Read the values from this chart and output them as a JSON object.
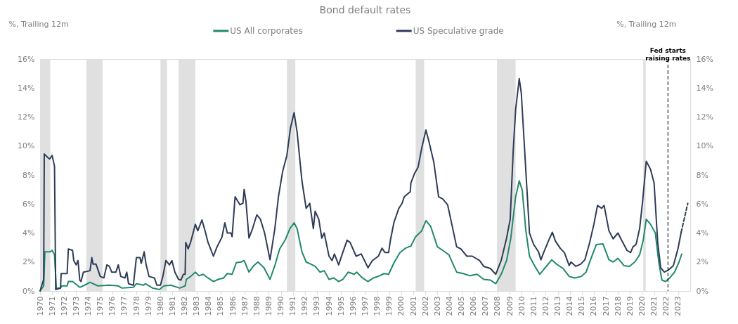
{
  "chart_data": {
    "type": "line",
    "title": "Bond default rates",
    "ylabel": "%, Trailing 12m",
    "y2label": "%, Trailing 12m",
    "xlim": [
      1970,
      2024
    ],
    "xticks": [
      1970,
      1971,
      1972,
      1973,
      1974,
      1975,
      1976,
      1977,
      1978,
      1979,
      1980,
      1981,
      1982,
      1983,
      1984,
      1985,
      1986,
      1987,
      1988,
      1989,
      1990,
      1991,
      1992,
      1993,
      1994,
      1995,
      1996,
      1997,
      1998,
      1999,
      2000,
      2001,
      2002,
      2003,
      2004,
      2005,
      2006,
      2007,
      2008,
      2009,
      2010,
      2011,
      2012,
      2013,
      2014,
      2015,
      2016,
      2017,
      2018,
      2019,
      2020,
      2021,
      2022,
      2023
    ],
    "ylim": [
      0,
      16
    ],
    "yticks": [
      {
        "value": 0,
        "label": "0%"
      },
      {
        "value": 2,
        "label": "2%"
      },
      {
        "value": 4,
        "label": "4%"
      },
      {
        "value": 6,
        "label": "6%"
      },
      {
        "value": 8,
        "label": "8%"
      },
      {
        "value": 10,
        "label": "10%"
      },
      {
        "value": 12,
        "label": "12%"
      },
      {
        "value": 14,
        "label": "14%"
      },
      {
        "value": 16,
        "label": "16%"
      }
    ],
    "y2lim": [
      0,
      16
    ],
    "y2ticks": [
      {
        "value": 0,
        "label": "0%"
      },
      {
        "value": 2,
        "label": "2%"
      },
      {
        "value": 4,
        "label": "4%"
      },
      {
        "value": 6,
        "label": "6%"
      },
      {
        "value": 8,
        "label": "8%"
      },
      {
        "value": 10,
        "label": "10%"
      },
      {
        "value": 12,
        "label": "12%"
      },
      {
        "value": 14,
        "label": "14%"
      },
      {
        "value": 16,
        "label": "16%"
      }
    ],
    "grid": false,
    "legend": "top",
    "line_style": "solid",
    "series": [
      {
        "name": "US All corporates",
        "color": "#21896b",
        "x": [
          1970.0,
          1970.3,
          1970.4,
          1970.85,
          1971.0,
          1971.2,
          1971.35,
          1971.7,
          1971.8,
          1972.25,
          1972.35,
          1972.7,
          1973.3,
          1973.7,
          1974.15,
          1974.8,
          1975.75,
          1976.5,
          1976.8,
          1977.75,
          1978.0,
          1978.6,
          1978.75,
          1979.35,
          1979.9,
          1980.3,
          1980.85,
          1981.6,
          1982.05,
          1982.15,
          1982.5,
          1982.9,
          1983.2,
          1983.55,
          1983.95,
          1984.4,
          1984.8,
          1985.25,
          1985.55,
          1985.95,
          1986.3,
          1986.7,
          1986.95,
          1987.35,
          1987.75,
          1988.1,
          1988.6,
          1989.1,
          1989.5,
          1989.9,
          1990.35,
          1990.75,
          1991.1,
          1991.35,
          1991.75,
          1992.1,
          1992.5,
          1992.85,
          1993.25,
          1993.6,
          1994.0,
          1994.4,
          1994.8,
          1995.15,
          1995.6,
          1996.1,
          1996.3,
          1996.77,
          1997.24,
          1997.7,
          1998.2,
          1998.56,
          1998.95,
          1999.4,
          1999.9,
          2000.35,
          2000.8,
          2001.2,
          2001.7,
          2002.05,
          2002.45,
          2003.0,
          2003.45,
          2003.95,
          2004.6,
          2005.15,
          2005.7,
          2006.3,
          2006.85,
          2007.4,
          2007.85,
          2008.3,
          2008.75,
          2009.1,
          2009.5,
          2009.8,
          2010.05,
          2010.35,
          2010.65,
          2011.1,
          2011.5,
          2011.95,
          2012.5,
          2012.9,
          2013.45,
          2013.95,
          2014.4,
          2014.95,
          2015.35,
          2015.7,
          2016.2,
          2016.75,
          2017.25,
          2017.6,
          2018.0,
          2018.5,
          2018.95,
          2019.4,
          2019.8,
          2020.1,
          2020.35,
          2020.7,
          2021.1,
          2021.4,
          2021.65,
          2021.95,
          2022.3,
          2022.7,
          2023.05,
          2023.3
        ],
        "values": [
          0.0,
          0.35,
          2.7,
          2.7,
          2.8,
          2.5,
          0.2,
          0.2,
          0.35,
          0.35,
          0.65,
          0.65,
          0.25,
          0.4,
          0.6,
          0.35,
          0.4,
          0.35,
          0.2,
          0.25,
          0.5,
          0.4,
          0.5,
          0.2,
          0.1,
          0.35,
          0.4,
          0.2,
          0.35,
          0.8,
          1.0,
          1.3,
          1.05,
          1.15,
          0.9,
          0.65,
          0.8,
          0.9,
          1.2,
          1.15,
          1.95,
          2.0,
          2.1,
          1.3,
          1.75,
          2.0,
          1.6,
          0.8,
          1.75,
          2.9,
          3.5,
          4.3,
          4.7,
          4.3,
          2.7,
          2.0,
          1.85,
          1.7,
          1.3,
          1.4,
          0.8,
          0.9,
          0.65,
          0.8,
          1.3,
          1.15,
          1.3,
          0.9,
          0.65,
          0.9,
          1.05,
          1.2,
          1.15,
          1.95,
          2.65,
          2.95,
          3.1,
          3.75,
          4.15,
          4.85,
          4.45,
          3.05,
          2.8,
          2.5,
          1.3,
          1.2,
          1.05,
          1.15,
          0.8,
          0.75,
          0.5,
          1.15,
          2.1,
          3.65,
          6.5,
          7.6,
          6.95,
          4.15,
          2.4,
          1.7,
          1.15,
          1.6,
          2.15,
          1.85,
          1.55,
          1.0,
          0.9,
          1.0,
          1.3,
          2.1,
          3.2,
          3.25,
          2.15,
          2.0,
          2.25,
          1.75,
          1.7,
          2.0,
          2.5,
          3.5,
          4.95,
          4.6,
          4.0,
          1.95,
          0.75,
          0.65,
          0.9,
          1.3,
          1.95,
          2.55
        ]
      },
      {
        "name": "US Speculative grade",
        "color": "#2e3c58",
        "x": [
          1970.0,
          1970.3,
          1970.35,
          1970.65,
          1970.8,
          1971.0,
          1971.2,
          1971.3,
          1971.7,
          1971.75,
          1972.25,
          1972.35,
          1972.7,
          1972.8,
          1973.0,
          1973.15,
          1973.3,
          1973.4,
          1973.6,
          1974.15,
          1974.3,
          1974.4,
          1974.65,
          1975.0,
          1975.3,
          1975.55,
          1975.75,
          1975.95,
          1976.3,
          1976.5,
          1976.7,
          1977.05,
          1977.2,
          1977.35,
          1977.75,
          1978.0,
          1978.3,
          1978.4,
          1978.65,
          1978.8,
          1979.05,
          1979.5,
          1979.7,
          1980.0,
          1980.2,
          1980.45,
          1980.75,
          1980.95,
          1981.2,
          1981.5,
          1981.7,
          1981.9,
          1982.05,
          1982.1,
          1982.3,
          1982.5,
          1982.9,
          1983.1,
          1983.45,
          1983.75,
          1983.95,
          1984.4,
          1984.7,
          1985.1,
          1985.35,
          1985.55,
          1985.85,
          1985.95,
          1986.2,
          1986.6,
          1986.85,
          1986.95,
          1987.1,
          1987.35,
          1987.65,
          1988.0,
          1988.3,
          1988.65,
          1989.1,
          1989.5,
          1989.8,
          1990.15,
          1990.5,
          1990.8,
          1991.1,
          1991.35,
          1991.75,
          1992.1,
          1992.4,
          1992.7,
          1992.85,
          1993.15,
          1993.4,
          1993.6,
          1994.0,
          1994.25,
          1994.45,
          1994.8,
          1995.1,
          1995.5,
          1995.75,
          1996.25,
          1996.68,
          1997.24,
          1997.6,
          1998.1,
          1998.4,
          1998.65,
          1998.95,
          1999.1,
          1999.4,
          1999.8,
          2000.07,
          2000.25,
          2000.75,
          2000.8,
          2001.1,
          2001.4,
          2001.7,
          2002.05,
          2002.3,
          2002.7,
          2003.1,
          2003.45,
          2003.85,
          2004.2,
          2004.6,
          2004.95,
          2005.45,
          2005.9,
          2006.5,
          2006.85,
          2007.4,
          2007.85,
          2008.3,
          2008.75,
          2009.05,
          2009.3,
          2009.5,
          2009.8,
          2009.97,
          2010.25,
          2010.65,
          2011.0,
          2011.4,
          2011.6,
          2011.85,
          2012.25,
          2012.55,
          2012.8,
          2013.2,
          2013.55,
          2013.95,
          2014.1,
          2014.5,
          2014.9,
          2015.25,
          2015.65,
          2016.0,
          2016.3,
          2016.65,
          2016.85,
          2017.25,
          2017.6,
          2018.0,
          2018.3,
          2018.75,
          2019.05,
          2019.25,
          2019.5,
          2019.8,
          2020.05,
          2020.35,
          2020.7,
          2021.0,
          2021.3,
          2021.55,
          2021.85,
          2022.2,
          2022.6,
          2022.98,
          2023.25
        ],
        "values": [
          0.0,
          0.8,
          9.45,
          9.2,
          9.1,
          9.35,
          8.6,
          0.1,
          0.2,
          1.2,
          1.2,
          2.9,
          2.8,
          2.1,
          1.8,
          2.1,
          0.75,
          0.65,
          1.3,
          1.4,
          2.3,
          1.85,
          1.85,
          1.0,
          0.9,
          1.8,
          1.7,
          1.3,
          1.3,
          1.8,
          1.0,
          0.9,
          1.3,
          0.5,
          0.4,
          2.3,
          2.3,
          1.9,
          2.7,
          1.85,
          1.0,
          0.9,
          0.4,
          0.4,
          1.0,
          2.1,
          1.8,
          2.1,
          1.3,
          0.8,
          0.75,
          1.15,
          1.15,
          3.35,
          2.9,
          3.35,
          4.6,
          4.15,
          4.9,
          4.0,
          3.35,
          2.4,
          3.05,
          3.7,
          4.7,
          4.0,
          4.0,
          3.75,
          6.5,
          5.95,
          6.05,
          7.0,
          6.2,
          3.65,
          4.3,
          5.25,
          4.95,
          4.0,
          2.15,
          4.3,
          6.5,
          8.25,
          9.35,
          11.25,
          12.3,
          10.95,
          7.6,
          5.7,
          6.05,
          4.3,
          5.5,
          4.95,
          3.65,
          4.0,
          2.4,
          2.1,
          2.55,
          1.8,
          2.55,
          3.5,
          3.35,
          2.4,
          2.55,
          1.6,
          2.1,
          2.4,
          2.95,
          2.65,
          2.65,
          3.5,
          4.75,
          5.7,
          6.05,
          6.5,
          6.85,
          7.45,
          8.1,
          8.55,
          9.85,
          11.1,
          10.3,
          8.9,
          6.5,
          6.35,
          5.95,
          4.6,
          3.05,
          2.9,
          2.4,
          2.4,
          2.1,
          1.7,
          1.55,
          1.15,
          2.1,
          3.65,
          4.95,
          9.7,
          12.5,
          14.65,
          13.65,
          9.7,
          4.0,
          3.2,
          2.7,
          2.15,
          2.7,
          3.5,
          4.05,
          3.45,
          2.95,
          2.65,
          1.75,
          2.0,
          1.7,
          1.85,
          2.15,
          3.35,
          4.6,
          5.9,
          5.7,
          5.9,
          4.15,
          3.6,
          4.0,
          3.5,
          2.8,
          2.65,
          3.05,
          3.2,
          4.3,
          6.2,
          8.95,
          8.4,
          7.45,
          3.35,
          1.6,
          1.3,
          1.45,
          1.75,
          2.9,
          4.05
        ]
      },
      {
        "type": "line",
        "color": "#2e3c58",
        "line_style": "dashed",
        "x": [
          2023.25,
          2023.8
        ],
        "values": [
          4.05,
          6.05
        ]
      }
    ],
    "bands": [
      {
        "axis": "x",
        "from": 1970.0,
        "to": 1970.85,
        "color": "#e0e0e0"
      },
      {
        "axis": "x",
        "from": 1973.85,
        "to": 1975.2,
        "color": "#e0e0e0"
      },
      {
        "axis": "x",
        "from": 1980.0,
        "to": 1980.55,
        "color": "#e0e0e0"
      },
      {
        "axis": "x",
        "from": 1981.5,
        "to": 1982.9,
        "color": "#e0e0e0"
      },
      {
        "axis": "x",
        "from": 1990.5,
        "to": 1991.2,
        "color": "#e0e0e0"
      },
      {
        "axis": "x",
        "from": 2001.2,
        "to": 2001.9,
        "color": "#e0e0e0"
      },
      {
        "axis": "x",
        "from": 2007.95,
        "to": 2009.5,
        "color": "#e0e0e0"
      },
      {
        "axis": "x",
        "from": 2020.1,
        "to": 2020.3,
        "color": "#e0e0e0"
      }
    ],
    "ref_lines": [
      {
        "axis": "x",
        "value": 2022.15,
        "label": "Fed starts\nraising rates",
        "color": "#000000",
        "line_style": "dashed"
      }
    ]
  }
}
